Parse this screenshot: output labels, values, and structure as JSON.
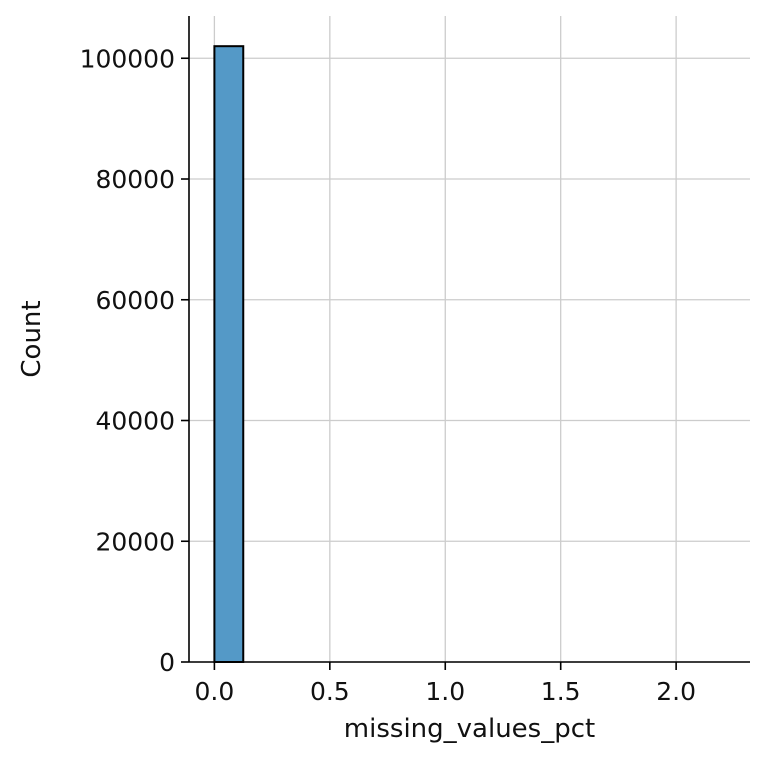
{
  "chart_data": {
    "type": "bar",
    "subtype": "histogram",
    "title": "",
    "xlabel": "missing_values_pct",
    "ylabel": "Count",
    "xlim": [
      -0.11,
      2.32
    ],
    "ylim": [
      0,
      107000
    ],
    "xticks": [
      0.0,
      0.5,
      1.0,
      1.5,
      2.0
    ],
    "xtick_labels": [
      "0.0",
      "0.5",
      "1.0",
      "1.5",
      "2.0"
    ],
    "yticks": [
      0,
      20000,
      40000,
      60000,
      80000,
      100000
    ],
    "ytick_labels": [
      "0",
      "20000",
      "40000",
      "60000",
      "80000",
      "100000"
    ],
    "grid": true,
    "bar_color": "#5499c7",
    "bar_edge_color": "#000000",
    "bins": [
      {
        "x0": 0.0,
        "x1": 0.125,
        "count": 102000
      },
      {
        "x0": 0.125,
        "x1": 0.25,
        "count": 0
      },
      {
        "x0": 0.25,
        "x1": 0.375,
        "count": 0
      },
      {
        "x0": 0.375,
        "x1": 0.5,
        "count": 0
      },
      {
        "x0": 0.5,
        "x1": 0.625,
        "count": 0
      },
      {
        "x0": 0.625,
        "x1": 0.75,
        "count": 0
      },
      {
        "x0": 0.75,
        "x1": 0.875,
        "count": 0
      },
      {
        "x0": 0.875,
        "x1": 1.0,
        "count": 0
      },
      {
        "x0": 1.0,
        "x1": 1.125,
        "count": 0
      },
      {
        "x0": 1.125,
        "x1": 1.25,
        "count": 0
      },
      {
        "x0": 1.25,
        "x1": 1.375,
        "count": 0
      },
      {
        "x0": 1.375,
        "x1": 1.5,
        "count": 0
      },
      {
        "x0": 1.5,
        "x1": 1.625,
        "count": 0
      },
      {
        "x0": 1.625,
        "x1": 1.75,
        "count": 0
      },
      {
        "x0": 1.75,
        "x1": 1.875,
        "count": 0
      },
      {
        "x0": 1.875,
        "x1": 2.0,
        "count": 0
      },
      {
        "x0": 2.0,
        "x1": 2.125,
        "count": 0
      },
      {
        "x0": 2.125,
        "x1": 2.25,
        "count": 0
      }
    ]
  }
}
